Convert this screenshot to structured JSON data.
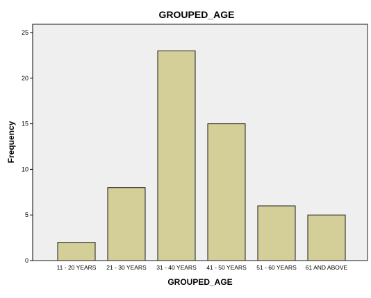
{
  "chart_data": {
    "type": "bar",
    "title": "GROUPED_AGE",
    "xlabel": "GROUPED_AGE",
    "ylabel": "Frequency",
    "categories": [
      "11 - 20 YEARS",
      "21 - 30 YEARS",
      "31 - 40 YEARS",
      "41 - 50 YEARS",
      "51 - 60 YEARS",
      "61 AND ABOVE"
    ],
    "values": [
      2,
      8,
      23,
      15,
      6,
      5
    ],
    "ylim": [
      0,
      25
    ],
    "yticks": [
      0,
      5,
      10,
      15,
      20,
      25
    ],
    "grid": false,
    "colors": {
      "bar_fill": "#d4cf99",
      "bar_stroke": "#1a1a1a",
      "plot_background": "#efefef",
      "plot_border": "#1a1a1a"
    }
  }
}
